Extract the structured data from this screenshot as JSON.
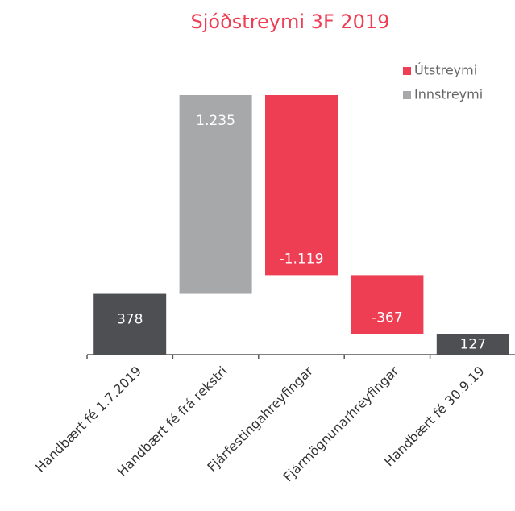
{
  "chart_data": {
    "type": "waterfall",
    "title": "Sjóðstreymi 3F 2019",
    "categories": [
      "Handbært fé 1.7.2019",
      "Handbært fé frá rekstri",
      "Fjárfestingahreyfingar",
      "Fjármögnunarhreyfingar",
      "Handbært fé 30.9.19"
    ],
    "values": [
      378,
      1235,
      -1119,
      -367,
      127
    ],
    "value_labels": [
      "378",
      "1.235",
      "-1.119",
      "-367",
      "127"
    ],
    "series": [
      {
        "name": "Útstreymi",
        "color": "#ee3e54"
      },
      {
        "name": "Innstreymi",
        "color": "#a7a8aa"
      }
    ],
    "total_color": "#4d4f53",
    "legend": "top-right"
  }
}
